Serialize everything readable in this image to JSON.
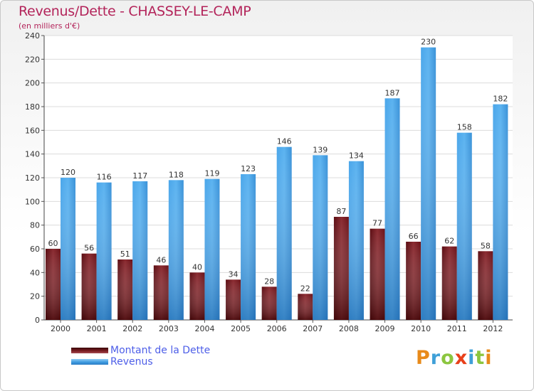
{
  "header": {
    "title": "Revenus/Dette - CHASSEY-LE-CAMP",
    "subtitle": "(en milliers d'€)"
  },
  "chart_data": {
    "type": "bar",
    "categories": [
      "2000",
      "2001",
      "2002",
      "2003",
      "2004",
      "2005",
      "2006",
      "2007",
      "2008",
      "2009",
      "2010",
      "2011",
      "2012"
    ],
    "series": [
      {
        "name": "Montant de la Dette",
        "color": "#7a1c22",
        "values": [
          60,
          56,
          51,
          46,
          40,
          34,
          28,
          22,
          87,
          77,
          66,
          62,
          58
        ]
      },
      {
        "name": "Revenus",
        "color": "#3f9be0",
        "values": [
          120,
          116,
          117,
          118,
          119,
          123,
          146,
          139,
          134,
          187,
          230,
          158,
          182
        ]
      }
    ],
    "ylim": [
      0,
      240
    ],
    "yticks": [
      0,
      20,
      40,
      60,
      80,
      100,
      120,
      140,
      160,
      180,
      200,
      220,
      240
    ],
    "grid": true,
    "legend_position": "bottom-left"
  },
  "logo": {
    "letters": [
      {
        "char": "P",
        "color": "#e88a1a"
      },
      {
        "char": "r",
        "color": "#3fa0d8"
      },
      {
        "char": "o",
        "color": "#8cc63f"
      },
      {
        "char": "x",
        "color": "#e8401a"
      },
      {
        "char": "i",
        "color": "#3fa0d8"
      },
      {
        "char": "t",
        "color": "#8cc63f"
      },
      {
        "char": "i",
        "color": "#e88a1a"
      }
    ]
  }
}
